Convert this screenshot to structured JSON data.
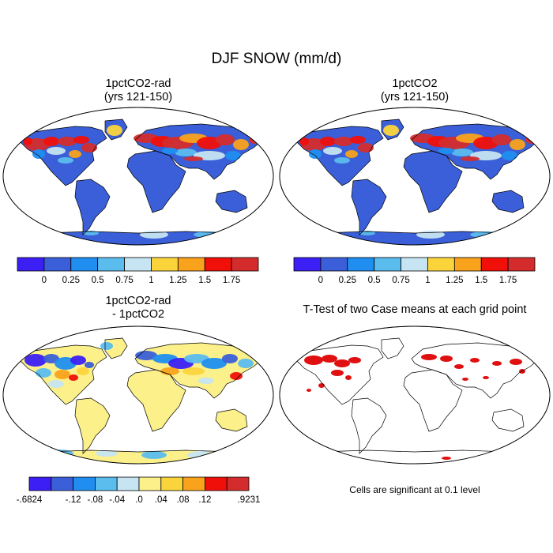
{
  "figure": {
    "title": "DJF SNOW (mm/d)",
    "panels": [
      {
        "title_line1": "1pctCO2-rad",
        "title_line2": "(yrs 121-150)"
      },
      {
        "title_line1": "1pctCO2",
        "title_line2": "(yrs 121-150)"
      },
      {
        "title_line1": "1pctCO2-rad",
        "title_line2": "- 1pctCO2"
      },
      {
        "title_line1": "T-Test of two Case means at each grid point",
        "title_line2": ""
      }
    ],
    "footnote": "Cells are significant at 0.1 level"
  },
  "colorbar_abs": {
    "colors": [
      "#3b1ff5",
      "#3a5fd8",
      "#1f8ef0",
      "#5bbcee",
      "#c6e4f2",
      "#fbd43c",
      "#f9a21c",
      "#f10f0a",
      "#d42c2c"
    ],
    "labels": [
      "0",
      "0.25",
      "0.5",
      "0.75",
      "1",
      "1.25",
      "1.5",
      "1.75"
    ]
  },
  "colorbar_diff": {
    "colors": [
      "#3b1ff5",
      "#3a5fd8",
      "#1f8ef0",
      "#5bbcee",
      "#c6e4f2",
      "#fbf08a",
      "#fbd43c",
      "#f9a21c",
      "#f10f0a",
      "#d42c2c"
    ],
    "labels": [
      "-.6824",
      "-.12",
      "-.08",
      "-.04",
      ".0",
      ".04",
      ".08",
      ".12",
      ".9231"
    ]
  },
  "map_colors": {
    "land_base_abs": "#3a5fd8",
    "land_base_diff": "#fbf08a",
    "significant": "#e01010",
    "coast": "#000000"
  }
}
